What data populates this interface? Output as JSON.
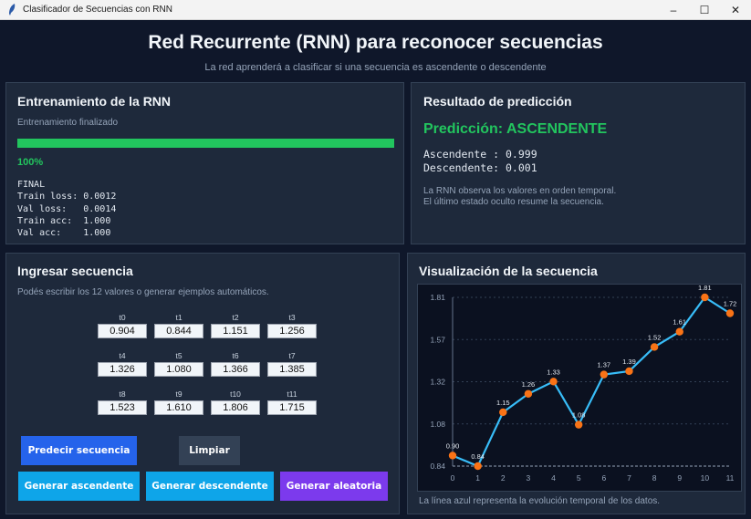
{
  "window": {
    "title": "Clasificador de Secuencias con RNN",
    "controls": {
      "minimize": "–",
      "maximize": "☐",
      "close": "✕"
    }
  },
  "header": {
    "title": "Red Recurrente (RNN) para reconocer secuencias",
    "subtitle": "La red aprenderá a clasificar si una secuencia es ascendente o descendente"
  },
  "training": {
    "title": "Entrenamiento de la RNN",
    "status": "Entrenamiento finalizado",
    "progress_pct": 100,
    "progress_label": "100%",
    "metrics_text": "FINAL\nTrain loss: 0.0012\nVal loss:   0.0014\nTrain acc:  1.000\nVal acc:    1.000",
    "metrics": {
      "header": "FINAL",
      "train_loss": "0.0012",
      "val_loss": "0.0014",
      "train_acc": "1.000",
      "val_acc": "1.000"
    }
  },
  "result": {
    "title": "Resultado de predicción",
    "prediction": "Predicción: ASCENDENTE",
    "probs_text": "Ascendente : 0.999\nDescendente: 0.001",
    "ascendente": "0.999",
    "descendente": "0.001",
    "note_line1": "La RNN observa los valores en orden temporal.",
    "note_line2": "El último estado oculto resume la secuencia."
  },
  "input": {
    "title": "Ingresar secuencia",
    "hint": "Podés escribir los 12 valores o generar ejemplos automáticos.",
    "fields": [
      {
        "label": "t0",
        "value": "0.904"
      },
      {
        "label": "t1",
        "value": "0.844"
      },
      {
        "label": "t2",
        "value": "1.151"
      },
      {
        "label": "t3",
        "value": "1.256"
      },
      {
        "label": "t4",
        "value": "1.326"
      },
      {
        "label": "t5",
        "value": "1.080"
      },
      {
        "label": "t6",
        "value": "1.366"
      },
      {
        "label": "t7",
        "value": "1.385"
      },
      {
        "label": "t8",
        "value": "1.523"
      },
      {
        "label": "t9",
        "value": "1.610"
      },
      {
        "label": "t10",
        "value": "1.806"
      },
      {
        "label": "t11",
        "value": "1.715"
      }
    ],
    "buttons": {
      "predict": "Predecir secuencia",
      "clear": "Limpiar",
      "gen_asc": "Generar ascendente",
      "gen_desc": "Generar descendente",
      "gen_rand": "Generar aleatoria"
    }
  },
  "visual": {
    "title": "Visualización de la secuencia",
    "caption": "La línea azul representa la evolución temporal de los datos."
  },
  "colors": {
    "line": "#38bdf8",
    "marker": "#f97316",
    "success": "#22c55e",
    "predict_btn": "#2563eb",
    "clear_btn": "#334155",
    "gen_btn": "#0ea5e9",
    "rand_btn": "#7c3aed"
  },
  "chart_data": {
    "type": "line",
    "title": "Visualización de la secuencia",
    "x": [
      0,
      1,
      2,
      3,
      4,
      5,
      6,
      7,
      8,
      9,
      10,
      11
    ],
    "values": [
      0.904,
      0.844,
      1.151,
      1.256,
      1.326,
      1.08,
      1.366,
      1.385,
      1.523,
      1.61,
      1.806,
      1.715
    ],
    "point_labels": [
      "0.90",
      "0.84",
      "1.15",
      "1.26",
      "1.33",
      "1.08",
      "1.37",
      "1.39",
      "1.52",
      "1.61",
      "1.81",
      "1.72"
    ],
    "y_ticks": [
      "0.84",
      "1.08",
      "1.32",
      "1.57",
      "1.81"
    ],
    "x_ticks": [
      "0",
      "1",
      "2",
      "3",
      "4",
      "5",
      "6",
      "7",
      "8",
      "9",
      "10",
      "11"
    ],
    "ylim": [
      0.844,
      1.806
    ],
    "xlabel": "",
    "ylabel": "",
    "grid": true,
    "legend": false
  }
}
